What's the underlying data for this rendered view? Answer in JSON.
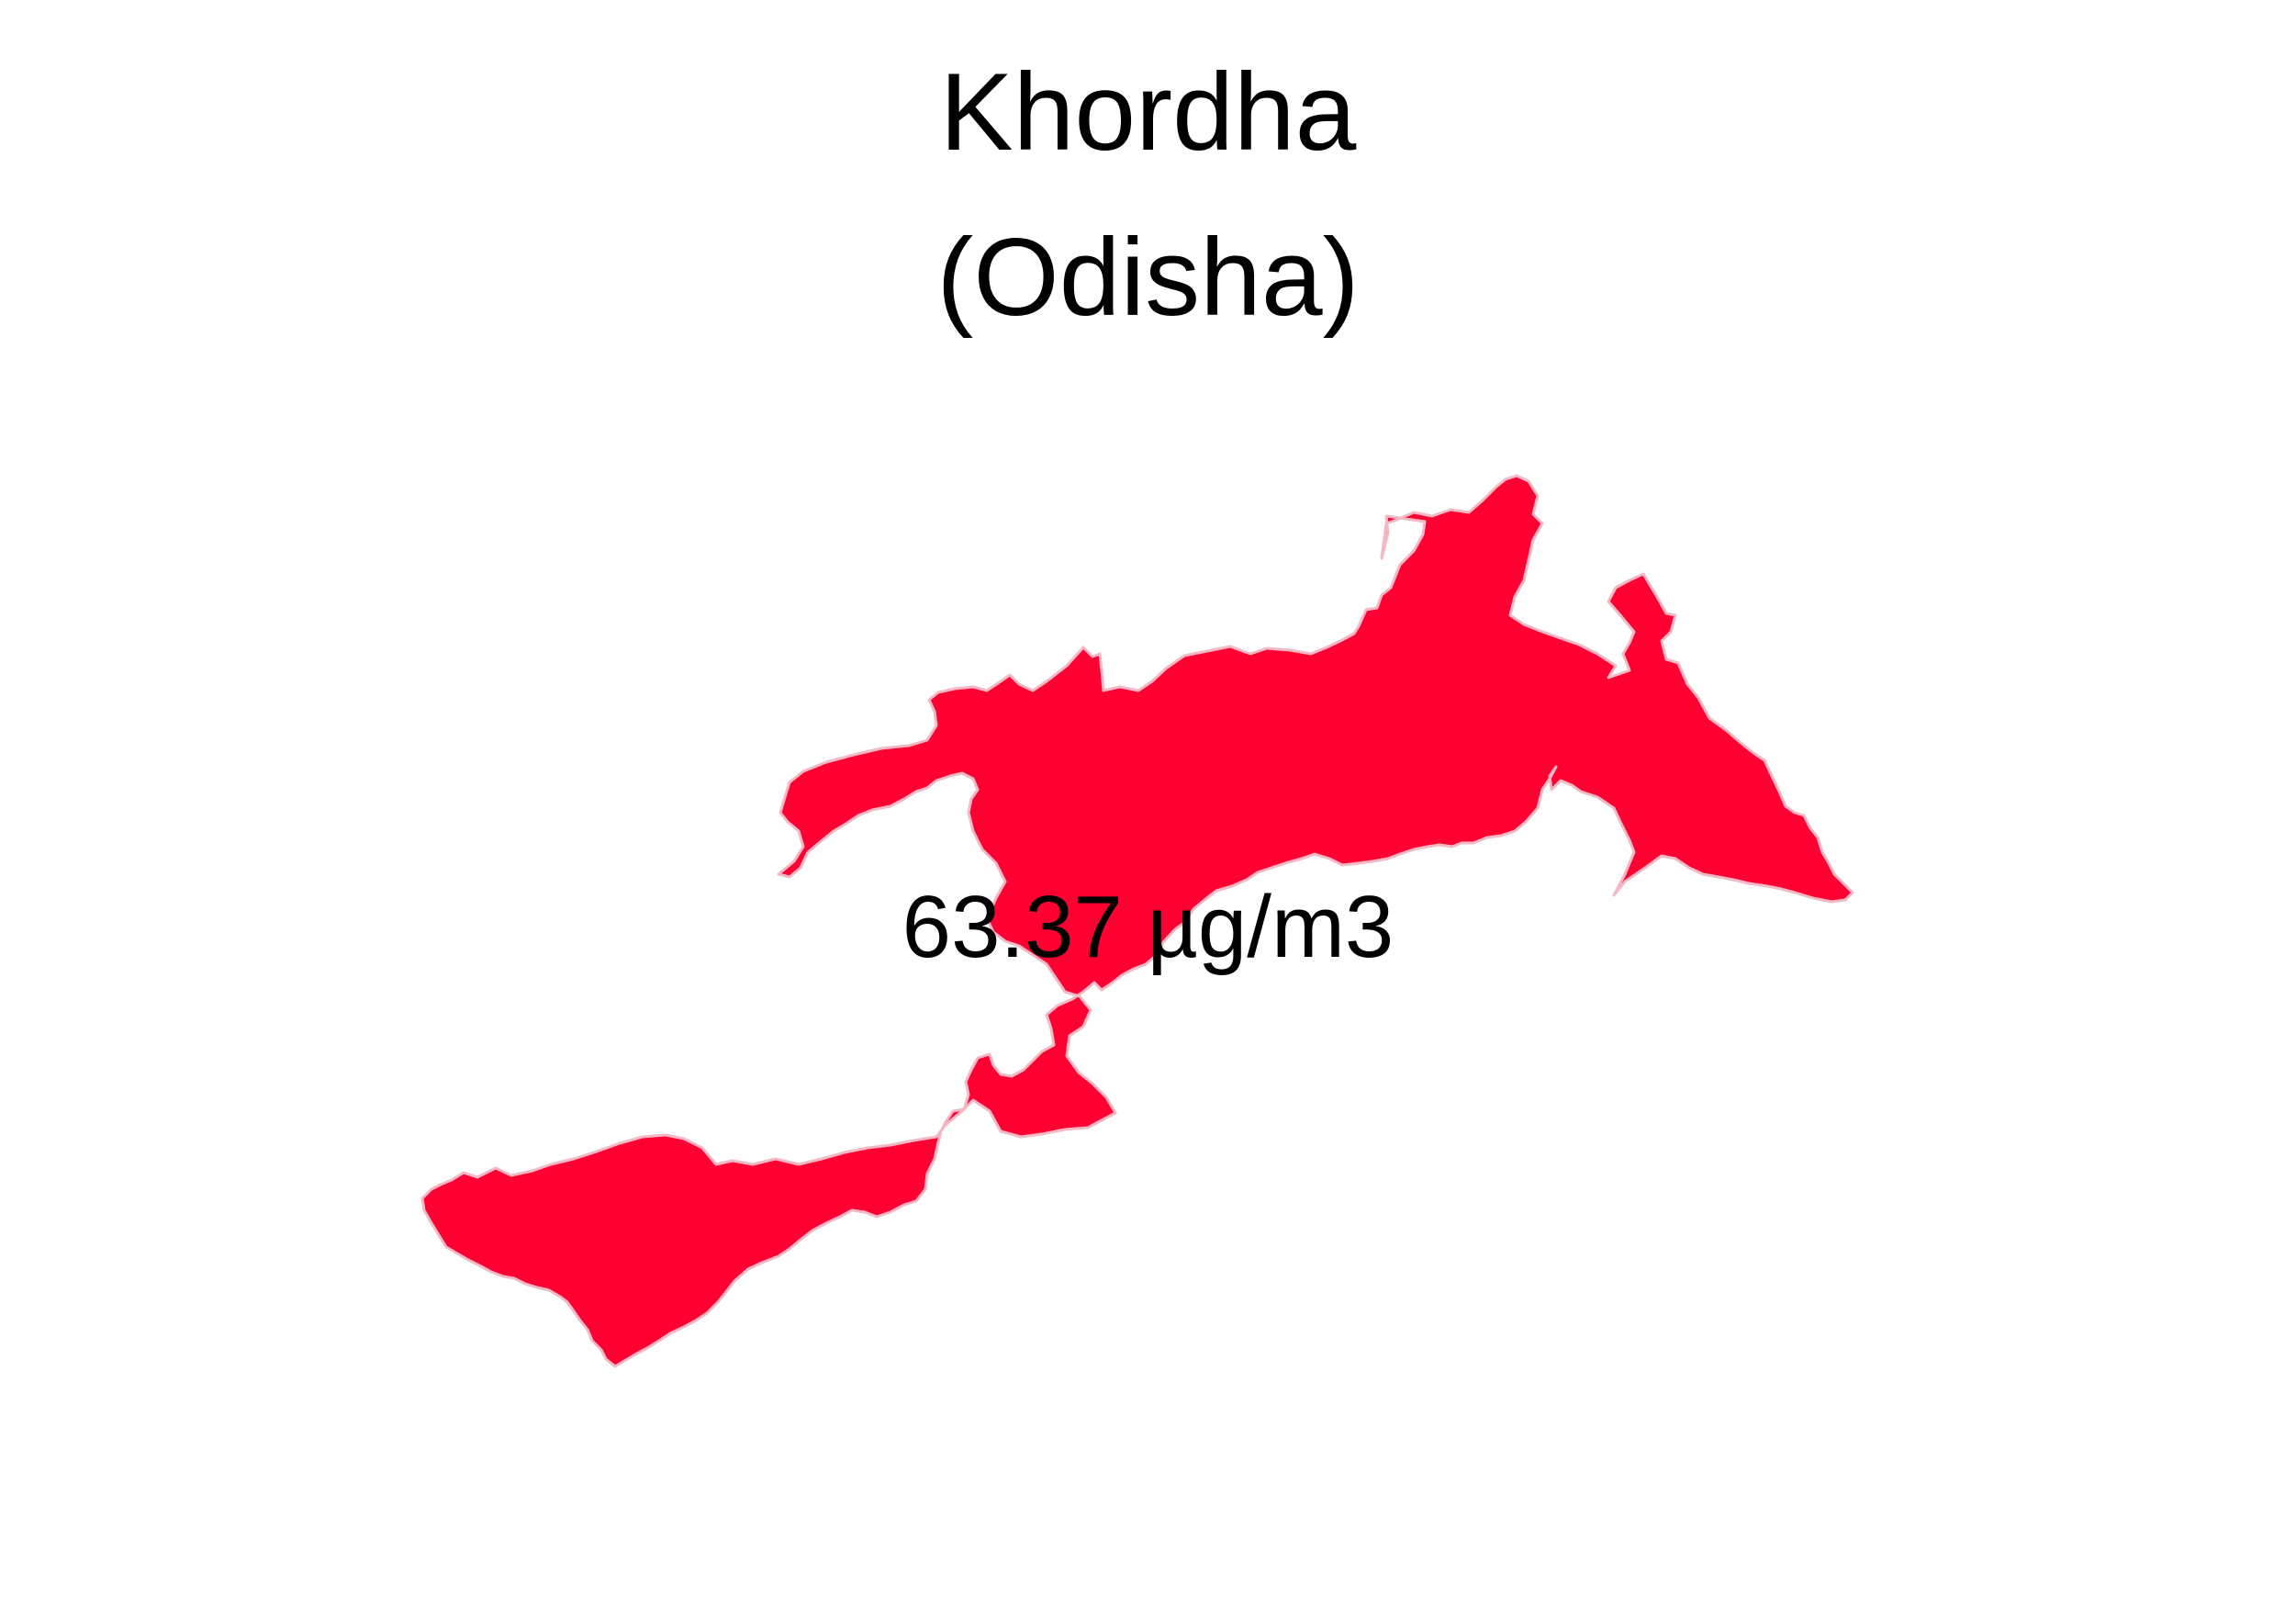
{
  "map": {
    "title": "Khordha",
    "subtitle": "(Odisha)",
    "value_label": "63.37 µg/m3",
    "region_fill": "#ff0033",
    "region_stroke": "#f4b8c4"
  }
}
